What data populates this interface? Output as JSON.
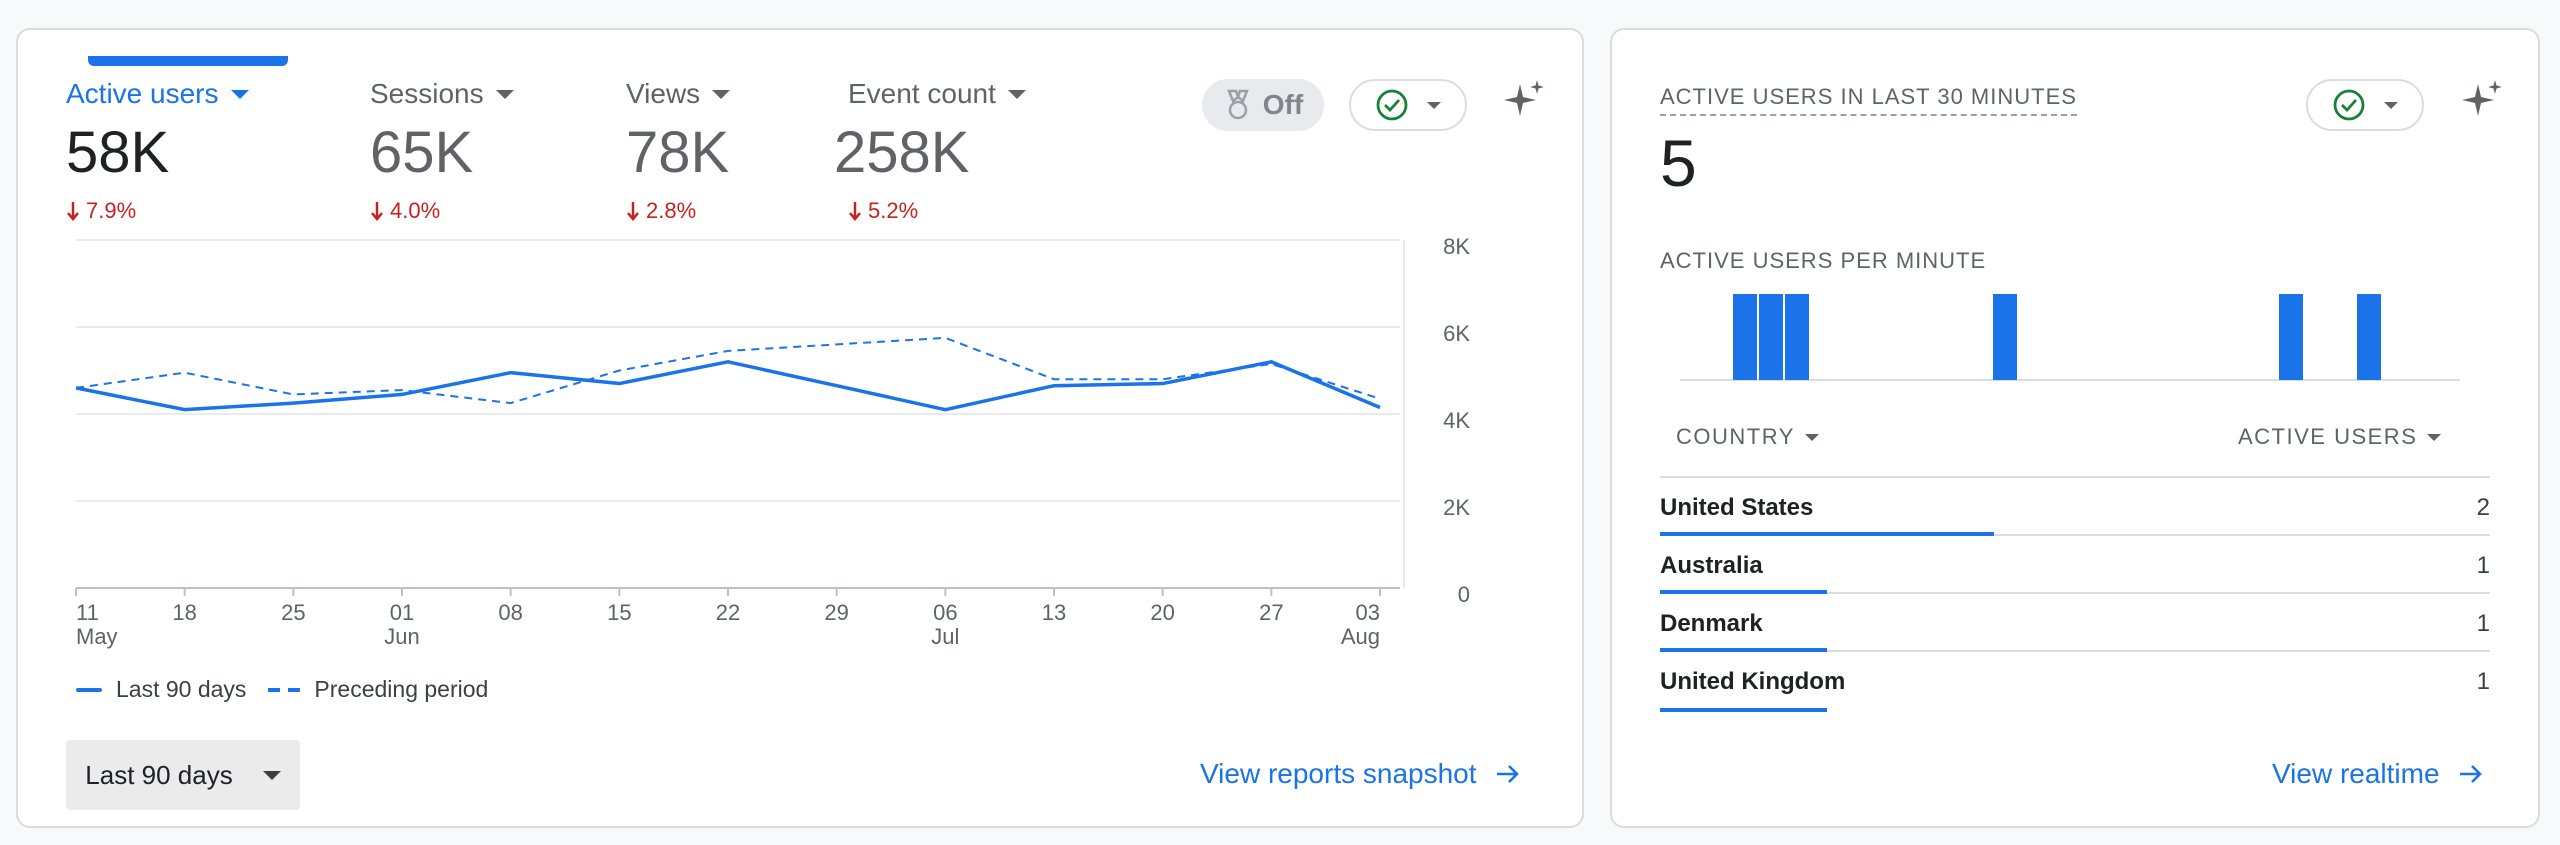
{
  "overview": {
    "metrics": [
      {
        "label": "Active users",
        "value": "58K",
        "change": "7.9%",
        "active": true
      },
      {
        "label": "Sessions",
        "value": "65K",
        "change": "4.0%",
        "active": false
      },
      {
        "label": "Views",
        "value": "78K",
        "change": "2.8%",
        "active": false
      },
      {
        "label": "Event count",
        "value": "258K",
        "change": "5.2%",
        "active": false
      }
    ],
    "comparison_toggle": {
      "label": "Off"
    },
    "legend": [
      {
        "label": "Last 90 days",
        "style": "solid"
      },
      {
        "label": "Preceding period",
        "style": "dashed"
      }
    ],
    "date_range": {
      "label": "Last 90 days"
    },
    "footer_link": "View reports snapshot",
    "colors": {
      "accent": "#1a73e8",
      "negative": "#c5221f",
      "positive_check": "#188038"
    }
  },
  "chart_data": {
    "type": "line",
    "x": [
      "11 May",
      "18 May",
      "25 May",
      "01 Jun",
      "08 Jun",
      "15 Jun",
      "22 Jun",
      "29 Jun",
      "06 Jul",
      "13 Jul",
      "20 Jul",
      "27 Jul",
      "03 Aug"
    ],
    "x_tick_labels": [
      {
        "day": "11",
        "month": "May"
      },
      {
        "day": "18",
        "month": ""
      },
      {
        "day": "25",
        "month": ""
      },
      {
        "day": "01",
        "month": "Jun"
      },
      {
        "day": "08",
        "month": ""
      },
      {
        "day": "15",
        "month": ""
      },
      {
        "day": "22",
        "month": ""
      },
      {
        "day": "29",
        "month": ""
      },
      {
        "day": "06",
        "month": "Jul"
      },
      {
        "day": "13",
        "month": ""
      },
      {
        "day": "20",
        "month": ""
      },
      {
        "day": "27",
        "month": ""
      },
      {
        "day": "03",
        "month": "Aug"
      }
    ],
    "series": [
      {
        "name": "Last 90 days",
        "style": "solid",
        "values": [
          4600,
          4100,
          4250,
          4450,
          4950,
          4700,
          5200,
          4650,
          4100,
          4650,
          4700,
          5200,
          4150
        ]
      },
      {
        "name": "Preceding period",
        "style": "dashed",
        "values": [
          4600,
          4950,
          4450,
          4550,
          4250,
          5000,
          5450,
          5600,
          5750,
          4800,
          4800,
          5150,
          4350
        ]
      }
    ],
    "ylim": [
      0,
      8000
    ],
    "y_ticks": [
      0,
      2000,
      4000,
      6000,
      8000
    ],
    "y_tick_labels": [
      "0",
      "2K",
      "4K",
      "6K",
      "8K"
    ],
    "grid": true,
    "legend_position": "bottom-left"
  },
  "realtime": {
    "title": "ACTIVE USERS IN LAST 30 MINUTES",
    "value": "5",
    "per_minute_title": "ACTIVE USERS PER MINUTE",
    "per_minute": [
      0,
      0,
      1,
      1,
      1,
      0,
      0,
      0,
      0,
      0,
      0,
      0,
      1,
      0,
      0,
      0,
      0,
      0,
      0,
      0,
      0,
      0,
      0,
      1,
      0,
      0,
      1,
      0,
      0,
      0
    ],
    "table": {
      "col_country": "COUNTRY",
      "col_users": "ACTIVE USERS",
      "rows": [
        {
          "country": "United States",
          "users": "2",
          "share": 1.0
        },
        {
          "country": "Australia",
          "users": "1",
          "share": 0.5
        },
        {
          "country": "Denmark",
          "users": "1",
          "share": 0.5
        },
        {
          "country": "United Kingdom",
          "users": "1",
          "share": 0.5
        }
      ]
    },
    "footer_link": "View realtime"
  }
}
